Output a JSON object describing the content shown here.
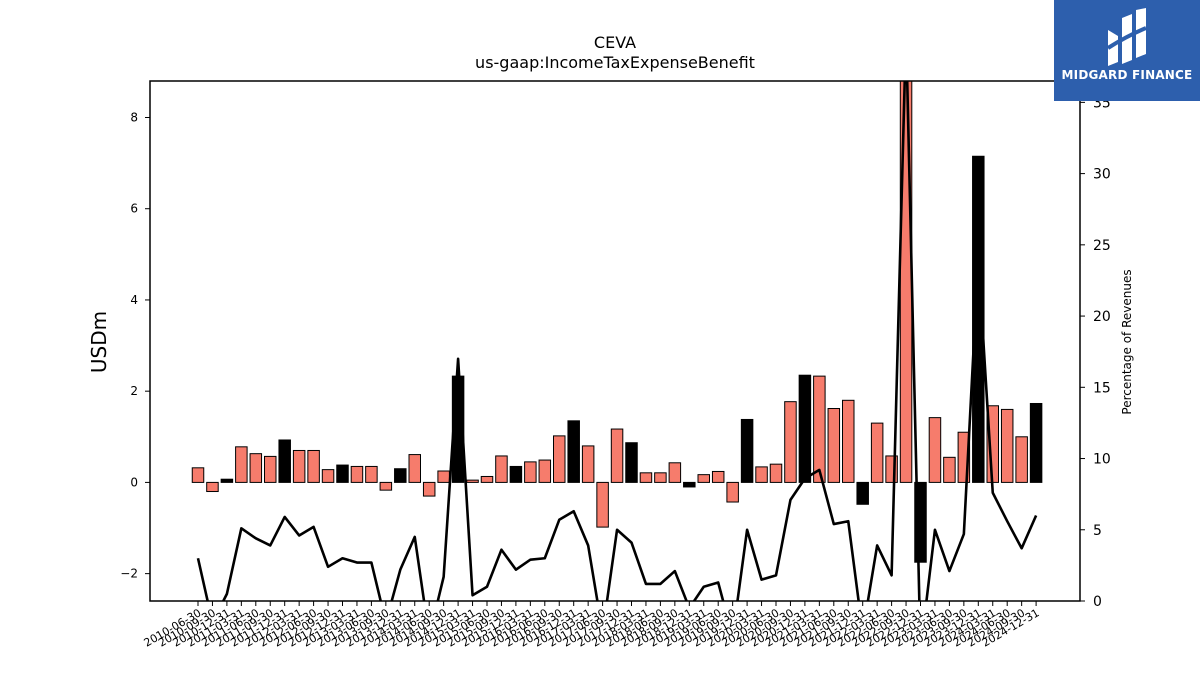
{
  "chart_data": {
    "type": "bar",
    "title": "CEVA",
    "subtitle": "us-gaap:IncomeTaxExpenseBenefit",
    "ylabel": "USDm",
    "y2label": "Percentage of Revenues",
    "ylim": [
      -2.6,
      8.8
    ],
    "y2lim": [
      0,
      36.5
    ],
    "yticks": [
      -2,
      0,
      2,
      4,
      6,
      8
    ],
    "y2ticks": [
      0,
      5,
      10,
      15,
      20,
      25,
      30,
      35
    ],
    "categories": [
      "2010-06-30",
      "2010-09-30",
      "2010-12-31",
      "2011-03-31",
      "2011-06-30",
      "2011-09-30",
      "2011-12-31",
      "2012-03-31",
      "2012-06-30",
      "2012-09-30",
      "2012-12-31",
      "2013-03-31",
      "2013-06-30",
      "2013-09-30",
      "2013-12-31",
      "2014-03-31",
      "2014-06-30",
      "2014-09-30",
      "2014-12-31",
      "2015-03-31",
      "2015-06-30",
      "2015-09-30",
      "2015-12-31",
      "2016-03-31",
      "2016-06-30",
      "2016-09-30",
      "2016-12-31",
      "2017-03-31",
      "2017-06-30",
      "2017-09-30",
      "2017-12-31",
      "2018-03-31",
      "2018-06-30",
      "2018-09-30",
      "2018-12-31",
      "2019-03-31",
      "2019-06-30",
      "2019-09-30",
      "2019-12-31",
      "2020-03-31",
      "2020-06-30",
      "2020-09-30",
      "2020-12-31",
      "2021-03-31",
      "2021-06-30",
      "2021-09-30",
      "2021-12-31",
      "2022-03-31",
      "2022-06-30",
      "2022-09-30",
      "2022-12-31",
      "2023-03-31",
      "2023-06-30",
      "2023-09-30",
      "2023-12-31",
      "2024-03-31",
      "2024-06-30",
      "2024-09-30",
      "2024-12-31"
    ],
    "series": [
      {
        "values": [
          0.32,
          -0.2,
          0.07,
          0.78,
          0.63,
          0.57,
          0.93,
          0.7,
          0.7,
          0.28,
          0.38,
          0.35,
          0.35,
          -0.17,
          0.3,
          0.61,
          -0.3,
          0.25,
          2.33,
          0.05,
          0.13,
          0.58,
          0.35,
          0.45,
          0.49,
          1.02,
          1.35,
          0.8,
          -0.98,
          1.17,
          0.87,
          0.21,
          0.21,
          0.43,
          -0.1,
          0.17,
          0.24,
          -0.43,
          1.38,
          0.34,
          0.4,
          1.77,
          2.35,
          2.33,
          1.62,
          1.8,
          -0.48,
          1.3,
          0.58,
          9.5,
          -1.75,
          1.42,
          0.55,
          1.1,
          7.15,
          1.68,
          1.6,
          1.0,
          1.73
        ],
        "highlight": [
          false,
          false,
          true,
          false,
          false,
          false,
          true,
          false,
          false,
          false,
          true,
          false,
          false,
          false,
          true,
          false,
          false,
          false,
          true,
          false,
          false,
          false,
          true,
          false,
          false,
          false,
          true,
          false,
          false,
          false,
          true,
          false,
          false,
          false,
          true,
          false,
          false,
          false,
          true,
          false,
          false,
          false,
          true,
          false,
          false,
          false,
          true,
          false,
          false,
          false,
          true,
          false,
          false,
          false,
          true,
          false,
          false,
          false,
          true
        ]
      },
      {
        "axis": "secondary",
        "type": "line",
        "values": [
          3.0,
          -1.5,
          0.5,
          5.1,
          4.4,
          3.9,
          5.9,
          4.6,
          5.2,
          2.4,
          3.0,
          2.7,
          2.7,
          -1.5,
          2.2,
          4.5,
          -2.5,
          1.7,
          17.0,
          0.4,
          1.0,
          3.6,
          2.2,
          2.9,
          3.0,
          5.7,
          6.3,
          3.9,
          -2.2,
          5.0,
          4.1,
          1.2,
          1.2,
          2.1,
          -0.5,
          1.0,
          1.3,
          -2.5,
          5.0,
          1.5,
          1.8,
          7.1,
          8.6,
          9.2,
          5.4,
          5.6,
          -2.2,
          3.9,
          1.8,
          40.0,
          -3.5,
          5.0,
          2.1,
          4.7,
          24.0,
          7.6,
          5.6,
          3.7,
          6.0
        ]
      }
    ],
    "colors": {
      "positive": "#f67c6c",
      "highlight": "#000000",
      "line": "#000000",
      "logo_bg": "#2d5fad"
    }
  },
  "logo": {
    "text": "MIDGARD FINANCE"
  }
}
